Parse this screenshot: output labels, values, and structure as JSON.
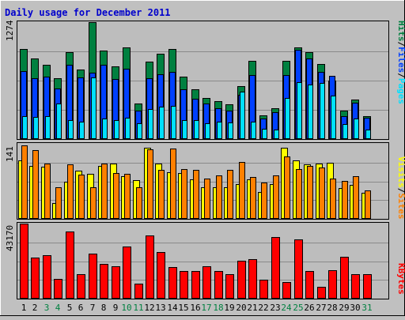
{
  "title": "Daily usage for December 2011",
  "days": [
    "1",
    "2",
    "3",
    "4",
    "5",
    "6",
    "7",
    "8",
    "9",
    "10",
    "11",
    "12",
    "13",
    "14",
    "15",
    "16",
    "17",
    "18",
    "19",
    "20",
    "21",
    "22",
    "23",
    "24",
    "25",
    "26",
    "27",
    "28",
    "29",
    "30",
    "31"
  ],
  "weekend_days": [
    "3",
    "4",
    "10",
    "11",
    "17",
    "18",
    "24",
    "25",
    "31"
  ],
  "colors": {
    "background": "#c0c0c0",
    "plot_bg": "#bdbdbd",
    "title": "#0000cc",
    "hits": "#008040",
    "files": "#0040ff",
    "pages": "#00e0ff",
    "visits": "#ffff00",
    "sites": "#ff8000",
    "kbytes": "#ff0000",
    "weekday_label": "#000000",
    "weekend_label": "#008040"
  },
  "labels": {
    "pages": "Pages",
    "files": "Files",
    "hits": "Hits",
    "sites": "Sites",
    "visits": "Visits",
    "kbytes": "KBytes",
    "sep": "/"
  },
  "chart_data": [
    {
      "type": "bar",
      "ylim": [
        0,
        1274
      ],
      "y_max_label": "1274",
      "categories": [
        "1",
        "2",
        "3",
        "4",
        "5",
        "6",
        "7",
        "8",
        "9",
        "10",
        "11",
        "12",
        "13",
        "14",
        "15",
        "16",
        "17",
        "18",
        "19",
        "20",
        "21",
        "22",
        "23",
        "24",
        "25",
        "26",
        "27",
        "28",
        "29",
        "30",
        "31"
      ],
      "series": [
        {
          "name": "Hits",
          "values": [
            980,
            880,
            810,
            660,
            950,
            760,
            1274,
            960,
            790,
            1000,
            390,
            840,
            930,
            980,
            680,
            540,
            450,
            410,
            380,
            580,
            850,
            260,
            340,
            850,
            1000,
            950,
            820,
            640,
            310,
            430,
            250
          ]
        },
        {
          "name": "Files",
          "values": [
            740,
            660,
            680,
            550,
            810,
            670,
            720,
            810,
            650,
            770,
            310,
            660,
            710,
            730,
            540,
            440,
            390,
            340,
            310,
            480,
            700,
            220,
            290,
            700,
            970,
            880,
            730,
            690,
            250,
            400,
            230
          ]
        },
        {
          "name": "Pages",
          "values": [
            250,
            240,
            250,
            390,
            210,
            190,
            670,
            220,
            210,
            230,
            170,
            330,
            350,
            360,
            210,
            210,
            170,
            190,
            180,
            520,
            190,
            110,
            100,
            450,
            620,
            590,
            610,
            470,
            160,
            220,
            100
          ]
        }
      ]
    },
    {
      "type": "bar",
      "ylim": [
        0,
        141
      ],
      "y_max_label": "141",
      "categories": [
        "1",
        "2",
        "3",
        "4",
        "5",
        "6",
        "7",
        "8",
        "9",
        "10",
        "11",
        "12",
        "13",
        "14",
        "15",
        "16",
        "17",
        "18",
        "19",
        "20",
        "21",
        "22",
        "23",
        "24",
        "25",
        "26",
        "27",
        "28",
        "29",
        "30",
        "31"
      ],
      "series": [
        {
          "name": "Visits",
          "values": [
            110,
            100,
            98,
            30,
            70,
            90,
            85,
            100,
            104,
            80,
            73,
            133,
            104,
            88,
            86,
            74,
            59,
            60,
            59,
            66,
            74,
            50,
            65,
            134,
            110,
            102,
            104,
            106,
            58,
            64,
            49
          ]
        },
        {
          "name": "Sites",
          "values": [
            138,
            129,
            104,
            60,
            102,
            83,
            60,
            104,
            86,
            85,
            60,
            130,
            92,
            132,
            93,
            92,
            76,
            81,
            92,
            107,
            79,
            69,
            82,
            117,
            93,
            100,
            96,
            76,
            71,
            80,
            53
          ]
        }
      ]
    },
    {
      "type": "bar",
      "ylim": [
        0,
        43170
      ],
      "y_max_label": "43170",
      "categories": [
        "1",
        "2",
        "3",
        "4",
        "5",
        "6",
        "7",
        "8",
        "9",
        "10",
        "11",
        "12",
        "13",
        "14",
        "15",
        "16",
        "17",
        "18",
        "19",
        "20",
        "21",
        "22",
        "23",
        "24",
        "25",
        "26",
        "27",
        "28",
        "29",
        "30",
        "31"
      ],
      "series": [
        {
          "name": "KBytes",
          "values": [
            43170,
            23600,
            25000,
            11200,
            38400,
            13900,
            26100,
            20100,
            18500,
            30200,
            8600,
            36500,
            26700,
            18000,
            15800,
            16000,
            18600,
            15900,
            13900,
            21900,
            22900,
            11000,
            35600,
            9700,
            34100,
            15800,
            6900,
            16400,
            24100,
            14200,
            13900
          ]
        }
      ]
    }
  ]
}
